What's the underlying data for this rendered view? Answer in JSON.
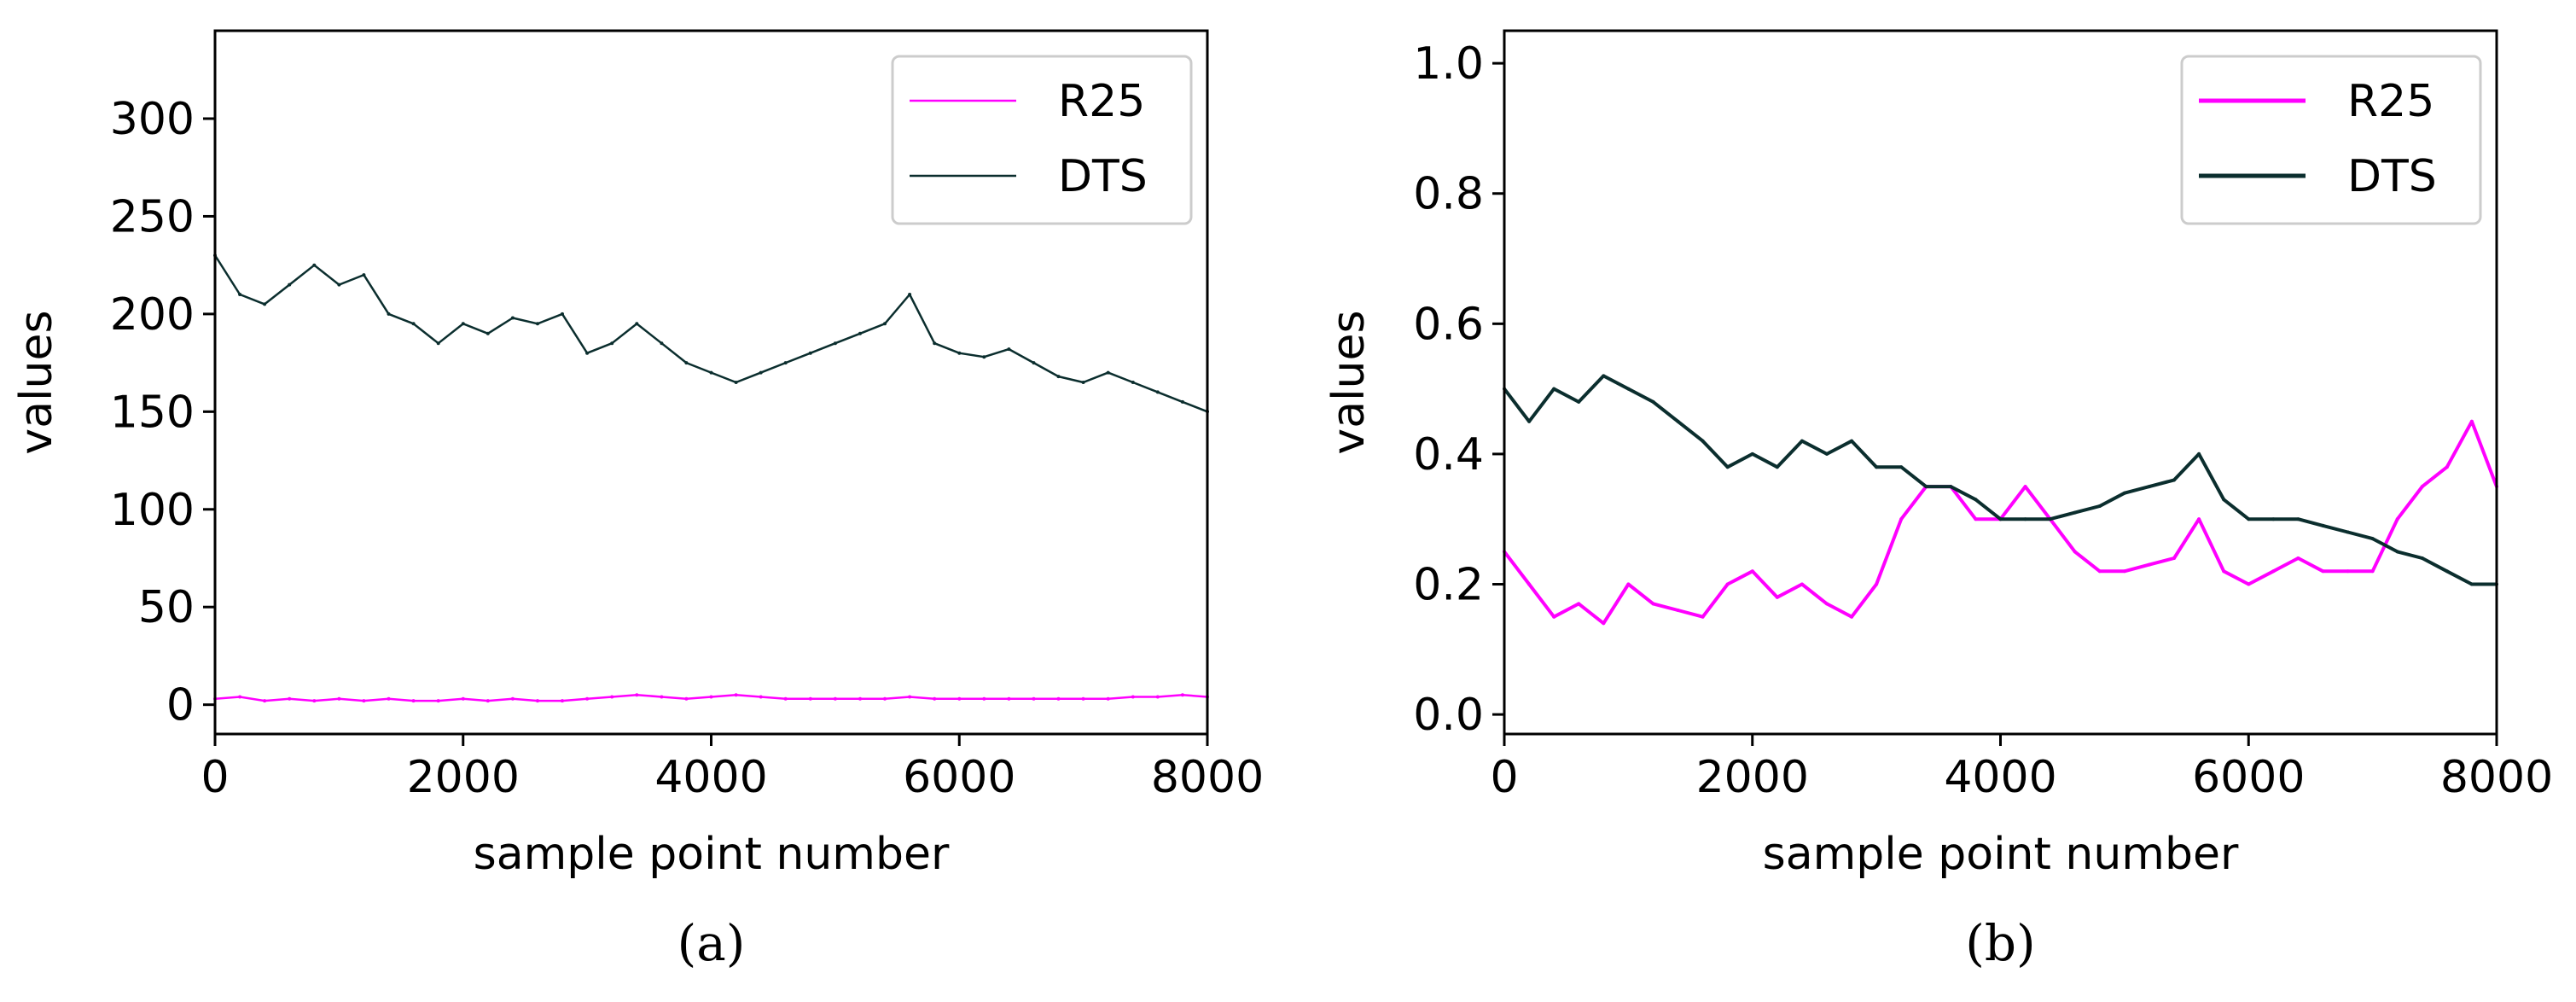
{
  "colors": {
    "r25": "#ff00ff",
    "dts": "#0b2e2e",
    "axis": "#000000",
    "legend_border": "#cccccc"
  },
  "chart_data": [
    {
      "type": "line",
      "panel": "a",
      "caption": "(a)",
      "title": "",
      "xlabel": "sample point number",
      "ylabel": "values",
      "xlim": [
        0,
        8000
      ],
      "ylim": [
        -15,
        345
      ],
      "xticks": [
        0,
        2000,
        4000,
        6000,
        8000
      ],
      "xtick_labels": [
        "0",
        "2000",
        "4000",
        "6000",
        "8000"
      ],
      "yticks": [
        0,
        50,
        100,
        150,
        200,
        250,
        300
      ],
      "ytick_labels": [
        "0",
        "50",
        "100",
        "150",
        "200",
        "250",
        "300"
      ],
      "grid": false,
      "legend_position": "top-right",
      "series": [
        {
          "name": "R25",
          "color_key": "r25",
          "x": [
            0,
            200,
            400,
            600,
            800,
            1000,
            1200,
            1400,
            1600,
            1800,
            2000,
            2200,
            2400,
            2600,
            2800,
            3000,
            3200,
            3400,
            3600,
            3800,
            4000,
            4200,
            4400,
            4600,
            4800,
            5000,
            5200,
            5400,
            5600,
            5800,
            6000,
            6200,
            6400,
            6600,
            6800,
            7000,
            7200,
            7400,
            7600,
            7800,
            8000
          ],
          "values": [
            3,
            4,
            2,
            3,
            2,
            3,
            2,
            3,
            2,
            2,
            3,
            2,
            3,
            2,
            2,
            3,
            4,
            5,
            4,
            3,
            4,
            5,
            4,
            3,
            3,
            3,
            3,
            3,
            4,
            3,
            3,
            3,
            3,
            3,
            3,
            3,
            3,
            4,
            4,
            5,
            4
          ]
        },
        {
          "name": "DTS",
          "color_key": "dts",
          "x": [
            0,
            200,
            400,
            600,
            800,
            1000,
            1200,
            1400,
            1600,
            1800,
            2000,
            2200,
            2400,
            2600,
            2800,
            3000,
            3200,
            3400,
            3600,
            3800,
            4000,
            4200,
            4400,
            4600,
            4800,
            5000,
            5200,
            5400,
            5600,
            5800,
            6000,
            6200,
            6400,
            6600,
            6800,
            7000,
            7200,
            7400,
            7600,
            7800,
            8000
          ],
          "values": [
            230,
            210,
            205,
            215,
            225,
            215,
            220,
            200,
            195,
            185,
            195,
            190,
            198,
            195,
            200,
            180,
            185,
            195,
            185,
            175,
            170,
            165,
            170,
            175,
            180,
            185,
            190,
            195,
            210,
            185,
            180,
            178,
            182,
            175,
            168,
            165,
            170,
            165,
            160,
            155,
            150
          ]
        }
      ]
    },
    {
      "type": "line",
      "panel": "b",
      "caption": "(b)",
      "title": "",
      "xlabel": "sample point number",
      "ylabel": "values",
      "xlim": [
        0,
        8000
      ],
      "ylim": [
        -0.03,
        1.05
      ],
      "xticks": [
        0,
        2000,
        4000,
        6000,
        8000
      ],
      "xtick_labels": [
        "0",
        "2000",
        "4000",
        "6000",
        "8000"
      ],
      "yticks": [
        0.0,
        0.2,
        0.4,
        0.6,
        0.8,
        1.0
      ],
      "ytick_labels": [
        "0.0",
        "0.2",
        "0.4",
        "0.6",
        "0.8",
        "1.0"
      ],
      "grid": false,
      "legend_position": "top-right",
      "series": [
        {
          "name": "R25",
          "color_key": "r25",
          "x": [
            0,
            200,
            400,
            600,
            800,
            1000,
            1200,
            1400,
            1600,
            1800,
            2000,
            2200,
            2400,
            2600,
            2800,
            3000,
            3200,
            3400,
            3600,
            3800,
            4000,
            4200,
            4400,
            4600,
            4800,
            5000,
            5200,
            5400,
            5600,
            5800,
            6000,
            6200,
            6400,
            6600,
            6800,
            7000,
            7200,
            7400,
            7600,
            7800,
            8000
          ],
          "values": [
            0.25,
            0.2,
            0.15,
            0.17,
            0.14,
            0.2,
            0.17,
            0.16,
            0.15,
            0.2,
            0.22,
            0.18,
            0.2,
            0.17,
            0.15,
            0.2,
            0.3,
            0.35,
            0.35,
            0.3,
            0.3,
            0.35,
            0.3,
            0.25,
            0.22,
            0.22,
            0.23,
            0.24,
            0.3,
            0.22,
            0.2,
            0.22,
            0.24,
            0.22,
            0.22,
            0.22,
            0.3,
            0.35,
            0.38,
            0.45,
            0.35
          ]
        },
        {
          "name": "DTS",
          "color_key": "dts",
          "x": [
            0,
            200,
            400,
            600,
            800,
            1000,
            1200,
            1400,
            1600,
            1800,
            2000,
            2200,
            2400,
            2600,
            2800,
            3000,
            3200,
            3400,
            3600,
            3800,
            4000,
            4200,
            4400,
            4600,
            4800,
            5000,
            5200,
            5400,
            5600,
            5800,
            6000,
            6200,
            6400,
            6600,
            6800,
            7000,
            7200,
            7400,
            7600,
            7800,
            8000
          ],
          "values": [
            0.5,
            0.45,
            0.5,
            0.48,
            0.52,
            0.5,
            0.48,
            0.45,
            0.42,
            0.38,
            0.4,
            0.38,
            0.42,
            0.4,
            0.42,
            0.38,
            0.38,
            0.35,
            0.35,
            0.33,
            0.3,
            0.3,
            0.3,
            0.31,
            0.32,
            0.34,
            0.35,
            0.36,
            0.4,
            0.33,
            0.3,
            0.3,
            0.3,
            0.29,
            0.28,
            0.27,
            0.25,
            0.24,
            0.22,
            0.2,
            0.2
          ]
        }
      ]
    }
  ]
}
